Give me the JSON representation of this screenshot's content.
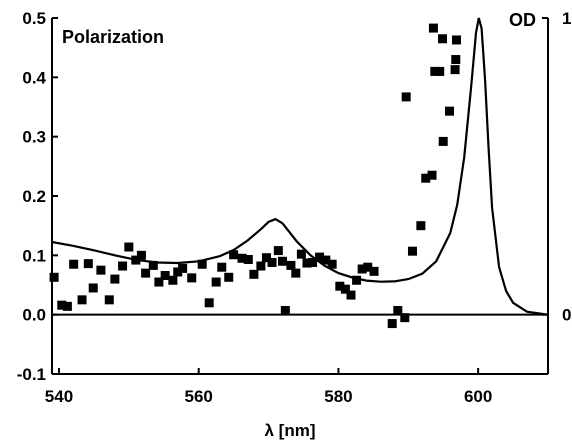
{
  "chart_data": {
    "type": "scatter",
    "title": "Polarization",
    "xlabel": "λ [nm]",
    "ylabel_right": "OD",
    "xlim": [
      539,
      610
    ],
    "ylim": [
      -0.1,
      0.5
    ],
    "y2lim": [
      -0.2,
      1
    ],
    "x_ticks": [
      "540",
      "560",
      "580",
      "600"
    ],
    "y_ticks": [
      "-0.1",
      "0.0",
      "0.1",
      "0.2",
      "0.3",
      "0.4",
      "0.5"
    ],
    "y2_ticks": [
      "0",
      "1"
    ],
    "grid": false,
    "series": [
      {
        "kind": "scatter",
        "axis": "left",
        "points": [
          [
            539.3,
            0.063
          ],
          [
            540.4,
            0.016
          ],
          [
            541.2,
            0.014
          ],
          [
            542.1,
            0.085
          ],
          [
            543.3,
            0.025
          ],
          [
            544.2,
            0.086
          ],
          [
            544.9,
            0.045
          ],
          [
            546.0,
            0.075
          ],
          [
            547.2,
            0.025
          ],
          [
            548.0,
            0.06
          ],
          [
            549.1,
            0.082
          ],
          [
            550.0,
            0.114
          ],
          [
            551.0,
            0.092
          ],
          [
            551.8,
            0.1
          ],
          [
            552.4,
            0.07
          ],
          [
            553.5,
            0.083
          ],
          [
            554.3,
            0.055
          ],
          [
            555.2,
            0.066
          ],
          [
            556.3,
            0.058
          ],
          [
            557.0,
            0.072
          ],
          [
            557.7,
            0.078
          ],
          [
            559.0,
            0.062
          ],
          [
            560.5,
            0.085
          ],
          [
            561.5,
            0.02
          ],
          [
            562.5,
            0.055
          ],
          [
            563.3,
            0.08
          ],
          [
            564.3,
            0.063
          ],
          [
            565.0,
            0.101
          ],
          [
            566.2,
            0.095
          ],
          [
            567.1,
            0.093
          ],
          [
            567.9,
            0.068
          ],
          [
            568.9,
            0.082
          ],
          [
            569.7,
            0.096
          ],
          [
            570.5,
            0.088
          ],
          [
            571.4,
            0.108
          ],
          [
            572.0,
            0.09
          ],
          [
            572.4,
            0.007
          ],
          [
            573.2,
            0.083
          ],
          [
            573.9,
            0.07
          ],
          [
            574.7,
            0.102
          ],
          [
            575.5,
            0.087
          ],
          [
            576.3,
            0.088
          ],
          [
            577.3,
            0.097
          ],
          [
            578.2,
            0.092
          ],
          [
            579.1,
            0.085
          ],
          [
            580.2,
            0.048
          ],
          [
            581.0,
            0.043
          ],
          [
            581.8,
            0.033
          ],
          [
            582.6,
            0.058
          ],
          [
            583.4,
            0.077
          ],
          [
            584.2,
            0.08
          ],
          [
            585.1,
            0.073
          ],
          [
            587.7,
            -0.015
          ],
          [
            588.5,
            0.007
          ],
          [
            589.5,
            -0.005
          ],
          [
            589.7,
            0.367
          ],
          [
            590.6,
            0.107
          ],
          [
            591.8,
            0.15
          ],
          [
            592.5,
            0.23
          ],
          [
            593.4,
            0.235
          ],
          [
            593.6,
            0.483
          ],
          [
            593.8,
            0.41
          ],
          [
            594.5,
            0.41
          ],
          [
            595.0,
            0.292
          ],
          [
            594.9,
            0.465
          ],
          [
            595.9,
            0.343
          ],
          [
            596.7,
            0.413
          ],
          [
            596.8,
            0.43
          ],
          [
            596.9,
            0.463
          ]
        ]
      },
      {
        "kind": "line",
        "axis": "right",
        "points": [
          [
            539,
            0.245
          ],
          [
            542,
            0.232
          ],
          [
            545,
            0.217
          ],
          [
            548,
            0.2
          ],
          [
            551,
            0.185
          ],
          [
            554,
            0.176
          ],
          [
            557,
            0.174
          ],
          [
            560,
            0.18
          ],
          [
            563,
            0.197
          ],
          [
            565,
            0.218
          ],
          [
            567,
            0.25
          ],
          [
            569,
            0.29
          ],
          [
            570,
            0.313
          ],
          [
            571,
            0.322
          ],
          [
            572,
            0.308
          ],
          [
            573,
            0.278
          ],
          [
            574,
            0.248
          ],
          [
            576,
            0.2
          ],
          [
            578,
            0.165
          ],
          [
            580,
            0.14
          ],
          [
            582,
            0.125
          ],
          [
            584,
            0.115
          ],
          [
            586,
            0.111
          ],
          [
            588,
            0.112
          ],
          [
            590,
            0.12
          ],
          [
            592,
            0.138
          ],
          [
            594,
            0.18
          ],
          [
            596,
            0.275
          ],
          [
            597,
            0.37
          ],
          [
            598,
            0.53
          ],
          [
            599,
            0.77
          ],
          [
            599.7,
            0.95
          ],
          [
            600.1,
            1.0
          ],
          [
            600.5,
            0.965
          ],
          [
            601,
            0.79
          ],
          [
            601.5,
            0.56
          ],
          [
            602,
            0.36
          ],
          [
            603,
            0.16
          ],
          [
            604,
            0.08
          ],
          [
            605,
            0.04
          ],
          [
            607,
            0.01
          ],
          [
            610,
            0.0
          ]
        ]
      }
    ]
  }
}
